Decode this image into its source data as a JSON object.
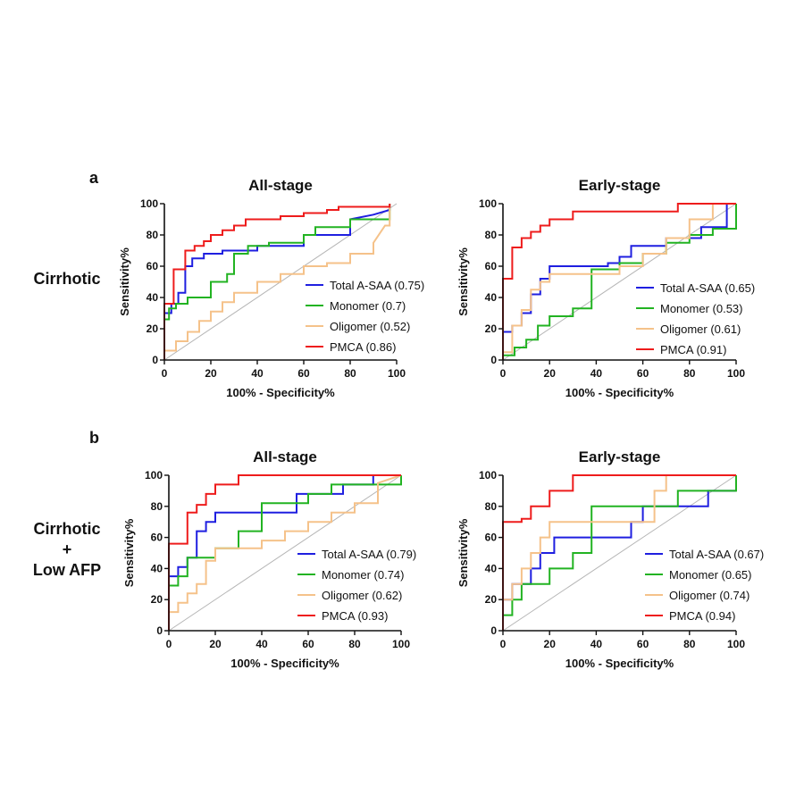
{
  "figure": {
    "panel_letters": [
      "a",
      "b"
    ],
    "row_labels": [
      {
        "lines": [
          "Cirrhotic"
        ]
      },
      {
        "lines": [
          "Cirrhotic",
          "+",
          "Low AFP"
        ]
      }
    ]
  },
  "colors": {
    "Total A-SAA": "#1f1fe0",
    "Monomer": "#22b322",
    "Oligomer": "#f5c28a",
    "PMCA": "#ee1c1c",
    "reference": "#b5b5b5",
    "axis": "#111111"
  },
  "chart_data": [
    {
      "type": "line",
      "title": "All-stage",
      "xlabel": "100% - Specificity%",
      "ylabel": "Sensitivity%",
      "xlim": [
        0,
        100
      ],
      "ylim": [
        0,
        100
      ],
      "xticks": [
        0,
        20,
        40,
        60,
        80,
        100
      ],
      "yticks": [
        0,
        20,
        40,
        60,
        80,
        100
      ],
      "grid": false,
      "legend_position": "bottom-right",
      "diagonal_reference": true,
      "series": [
        {
          "name": "Total A-SAA",
          "auc": "(0.75)",
          "x": [
            0,
            0,
            3,
            3,
            6,
            6,
            9,
            9,
            12,
            12,
            17,
            17,
            25,
            25,
            40,
            40,
            60,
            60,
            80,
            80,
            90,
            97,
            97
          ],
          "y": [
            0,
            30,
            30,
            36,
            36,
            43,
            43,
            60,
            60,
            65,
            65,
            68,
            68,
            70,
            70,
            73,
            73,
            80,
            80,
            90,
            93,
            96,
            100
          ]
        },
        {
          "name": "Monomer",
          "auc": "(0.7)",
          "x": [
            0,
            0,
            2,
            2,
            5,
            5,
            10,
            10,
            20,
            20,
            27,
            27,
            30,
            30,
            36,
            36,
            45,
            45,
            60,
            60,
            65,
            65,
            80,
            80,
            97,
            97
          ],
          "y": [
            0,
            26,
            26,
            33,
            33,
            36,
            36,
            40,
            40,
            50,
            50,
            55,
            55,
            68,
            68,
            73,
            73,
            75,
            75,
            80,
            80,
            85,
            85,
            90,
            90,
            100
          ]
        },
        {
          "name": "Oligomer",
          "auc": "(0.52)",
          "x": [
            0,
            0,
            5,
            5,
            10,
            10,
            15,
            15,
            20,
            20,
            25,
            25,
            30,
            30,
            40,
            40,
            50,
            50,
            60,
            60,
            70,
            70,
            80,
            80,
            90,
            90,
            95,
            97,
            97
          ],
          "y": [
            0,
            6,
            6,
            12,
            12,
            18,
            18,
            25,
            25,
            31,
            31,
            37,
            37,
            43,
            43,
            50,
            50,
            55,
            55,
            60,
            60,
            62,
            62,
            68,
            68,
            75,
            86,
            86,
            100
          ]
        },
        {
          "name": "PMCA",
          "auc": "(0.86)",
          "x": [
            0,
            0,
            4,
            4,
            9,
            9,
            13,
            13,
            17,
            17,
            20,
            20,
            25,
            25,
            30,
            30,
            35,
            35,
            50,
            50,
            60,
            60,
            70,
            70,
            75,
            75,
            97,
            97
          ],
          "y": [
            0,
            36,
            36,
            58,
            58,
            70,
            70,
            73,
            73,
            76,
            76,
            80,
            80,
            83,
            83,
            86,
            86,
            90,
            90,
            92,
            92,
            94,
            94,
            96,
            96,
            98,
            98,
            100
          ]
        }
      ]
    },
    {
      "type": "line",
      "title": "Early-stage",
      "xlabel": "100% - Specificity%",
      "ylabel": "Sensitivity%",
      "xlim": [
        0,
        100
      ],
      "ylim": [
        0,
        100
      ],
      "xticks": [
        0,
        20,
        40,
        60,
        80,
        100
      ],
      "yticks": [
        0,
        20,
        40,
        60,
        80,
        100
      ],
      "grid": false,
      "legend_position": "bottom-right",
      "diagonal_reference": true,
      "series": [
        {
          "name": "Total A-SAA",
          "auc": "(0.65)",
          "x": [
            0,
            0,
            4,
            4,
            8,
            8,
            12,
            12,
            16,
            16,
            20,
            20,
            45,
            45,
            50,
            50,
            55,
            55,
            70,
            70,
            85,
            85,
            96,
            96
          ],
          "y": [
            0,
            18,
            18,
            22,
            22,
            30,
            30,
            42,
            42,
            52,
            52,
            60,
            60,
            62,
            62,
            66,
            66,
            73,
            73,
            78,
            78,
            85,
            85,
            100
          ]
        },
        {
          "name": "Monomer",
          "auc": "(0.53)",
          "x": [
            0,
            0,
            5,
            5,
            10,
            10,
            15,
            15,
            20,
            20,
            30,
            30,
            38,
            38,
            50,
            50,
            60,
            60,
            70,
            70,
            80,
            80,
            90,
            90,
            100,
            100
          ],
          "y": [
            0,
            3,
            3,
            8,
            8,
            13,
            13,
            22,
            22,
            28,
            28,
            33,
            33,
            58,
            58,
            62,
            62,
            68,
            68,
            75,
            75,
            80,
            80,
            84,
            84,
            100
          ]
        },
        {
          "name": "Oligomer",
          "auc": "(0.61)",
          "x": [
            0,
            0,
            4,
            4,
            8,
            8,
            12,
            12,
            16,
            16,
            20,
            20,
            50,
            50,
            60,
            60,
            70,
            70,
            80,
            80,
            90,
            90,
            100
          ],
          "y": [
            0,
            5,
            5,
            22,
            22,
            32,
            32,
            45,
            45,
            50,
            50,
            55,
            55,
            60,
            60,
            68,
            68,
            78,
            78,
            90,
            90,
            100,
            100
          ]
        },
        {
          "name": "PMCA",
          "auc": "(0.91)",
          "x": [
            0,
            0,
            4,
            4,
            8,
            8,
            12,
            12,
            16,
            16,
            20,
            20,
            30,
            30,
            75,
            75,
            100
          ],
          "y": [
            0,
            52,
            52,
            72,
            72,
            78,
            78,
            82,
            82,
            86,
            86,
            90,
            90,
            95,
            95,
            100,
            100
          ]
        }
      ]
    },
    {
      "type": "line",
      "title": "All-stage",
      "xlabel": "100% - Specificity%",
      "ylabel": "Sensitivity%",
      "xlim": [
        0,
        100
      ],
      "ylim": [
        0,
        100
      ],
      "xticks": [
        0,
        20,
        40,
        60,
        80,
        100
      ],
      "yticks": [
        0,
        20,
        40,
        60,
        80,
        100
      ],
      "grid": false,
      "legend_position": "bottom-right",
      "diagonal_reference": true,
      "series": [
        {
          "name": "Total A-SAA",
          "auc": "(0.79)",
          "x": [
            0,
            0,
            4,
            4,
            8,
            8,
            12,
            12,
            16,
            16,
            20,
            20,
            55,
            55,
            75,
            75,
            88,
            88,
            100
          ],
          "y": [
            0,
            35,
            35,
            41,
            41,
            47,
            47,
            64,
            64,
            70,
            70,
            76,
            76,
            88,
            88,
            94,
            94,
            100,
            100
          ]
        },
        {
          "name": "Monomer",
          "auc": "(0.74)",
          "x": [
            0,
            0,
            4,
            4,
            8,
            8,
            20,
            20,
            30,
            30,
            40,
            40,
            60,
            60,
            70,
            70,
            100,
            100
          ],
          "y": [
            0,
            29,
            29,
            35,
            35,
            47,
            47,
            53,
            53,
            64,
            64,
            82,
            82,
            88,
            88,
            94,
            94,
            100
          ]
        },
        {
          "name": "Oligomer",
          "auc": "(0.62)",
          "x": [
            0,
            0,
            4,
            4,
            8,
            8,
            12,
            12,
            16,
            16,
            20,
            20,
            40,
            40,
            50,
            50,
            60,
            60,
            70,
            70,
            80,
            80,
            90,
            90,
            100
          ],
          "y": [
            0,
            12,
            12,
            18,
            18,
            24,
            24,
            30,
            30,
            45,
            45,
            53,
            53,
            58,
            58,
            64,
            64,
            70,
            70,
            76,
            76,
            82,
            82,
            95,
            100
          ]
        },
        {
          "name": "PMCA",
          "auc": "(0.93)",
          "x": [
            0,
            0,
            8,
            8,
            12,
            12,
            16,
            16,
            20,
            20,
            30,
            30,
            100
          ],
          "y": [
            0,
            56,
            56,
            76,
            76,
            81,
            81,
            88,
            88,
            94,
            94,
            100,
            100
          ]
        }
      ]
    },
    {
      "type": "line",
      "title": "Early-stage",
      "xlabel": "100% - Specificity%",
      "ylabel": "Sensitivity%",
      "xlim": [
        0,
        100
      ],
      "ylim": [
        0,
        100
      ],
      "xticks": [
        0,
        20,
        40,
        60,
        80,
        100
      ],
      "yticks": [
        0,
        20,
        40,
        60,
        80,
        100
      ],
      "grid": false,
      "legend_position": "bottom-right",
      "diagonal_reference": true,
      "series": [
        {
          "name": "Total A-SAA",
          "auc": "(0.67)",
          "x": [
            0,
            0,
            4,
            4,
            12,
            12,
            16,
            16,
            22,
            22,
            55,
            55,
            60,
            60,
            88,
            88,
            100
          ],
          "y": [
            0,
            20,
            20,
            30,
            30,
            40,
            40,
            50,
            50,
            60,
            60,
            70,
            70,
            80,
            80,
            90,
            90
          ]
        },
        {
          "name": "Monomer",
          "auc": "(0.65)",
          "x": [
            0,
            0,
            4,
            4,
            8,
            8,
            20,
            20,
            30,
            30,
            38,
            38,
            55,
            55,
            75,
            75,
            100,
            100
          ],
          "y": [
            0,
            10,
            10,
            20,
            20,
            30,
            30,
            40,
            40,
            50,
            50,
            80,
            80,
            80,
            80,
            90,
            90,
            100
          ]
        },
        {
          "name": "Oligomer",
          "auc": "(0.74)",
          "x": [
            0,
            0,
            4,
            4,
            8,
            8,
            12,
            12,
            16,
            16,
            20,
            20,
            65,
            65,
            70,
            70,
            100
          ],
          "y": [
            0,
            20,
            20,
            30,
            30,
            40,
            40,
            50,
            50,
            60,
            60,
            70,
            70,
            90,
            90,
            100,
            100
          ]
        },
        {
          "name": "PMCA",
          "auc": "(0.94)",
          "x": [
            0,
            0,
            8,
            8,
            12,
            12,
            20,
            20,
            30,
            30,
            100
          ],
          "y": [
            0,
            70,
            70,
            72,
            72,
            80,
            80,
            90,
            90,
            100,
            100
          ]
        }
      ]
    }
  ]
}
